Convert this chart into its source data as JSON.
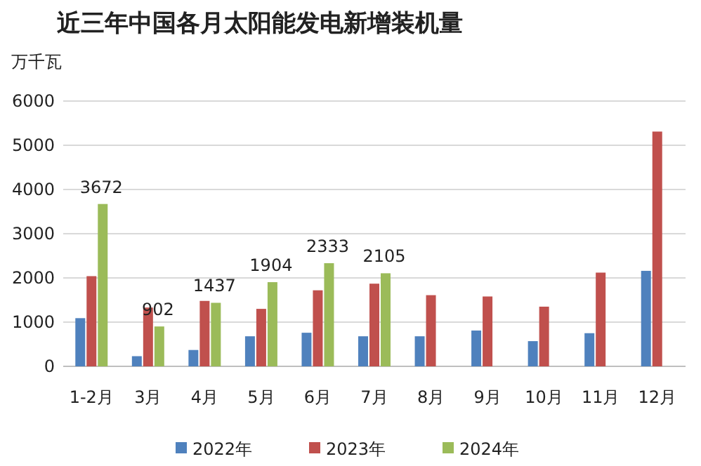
{
  "chart_data": {
    "type": "bar",
    "title": "近三年中国各月太阳能发电新增装机量",
    "ylabel": "万千瓦",
    "categories": [
      "1-2月",
      "3月",
      "4月",
      "5月",
      "6月",
      "7月",
      "8月",
      "9月",
      "10月",
      "11月",
      "12月"
    ],
    "series": [
      {
        "name": "2022年",
        "color": "#4f81bd",
        "values": [
          1090,
          230,
          370,
          680,
          760,
          680,
          680,
          810,
          570,
          750,
          2160
        ]
      },
      {
        "name": "2023年",
        "color": "#c0504d",
        "values": [
          2040,
          1330,
          1480,
          1300,
          1720,
          1870,
          1610,
          1580,
          1350,
          2120,
          5310
        ]
      },
      {
        "name": "2024年",
        "color": "#9bbb59",
        "values": [
          3672,
          902,
          1437,
          1904,
          2333,
          2105,
          null,
          null,
          null,
          null,
          null
        ],
        "value_labels": [
          "3672",
          "902",
          "1437",
          "1904",
          "2333",
          "2105",
          null,
          null,
          null,
          null,
          null
        ]
      }
    ],
    "ylim": [
      0,
      6000
    ],
    "yticks": [
      0,
      1000,
      2000,
      3000,
      4000,
      5000,
      6000
    ],
    "grid": "y",
    "legend": "bottom"
  }
}
